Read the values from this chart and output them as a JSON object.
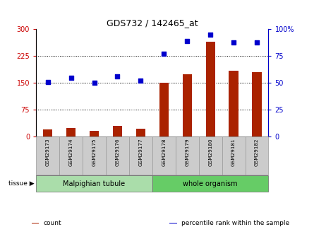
{
  "title": "GDS732 / 142465_at",
  "categories": [
    "GSM29173",
    "GSM29174",
    "GSM29175",
    "GSM29176",
    "GSM29177",
    "GSM29178",
    "GSM29179",
    "GSM29180",
    "GSM29181",
    "GSM29182"
  ],
  "counts": [
    20,
    25,
    16,
    30,
    22,
    150,
    175,
    265,
    185,
    180
  ],
  "percentiles": [
    51,
    55,
    50,
    56,
    52,
    77,
    89,
    95,
    88,
    88
  ],
  "bar_color": "#AA2200",
  "dot_color": "#0000CC",
  "ylim_left": [
    0,
    300
  ],
  "ylim_right": [
    0,
    100
  ],
  "yticks_left": [
    0,
    75,
    150,
    225,
    300
  ],
  "ytick_labels_left": [
    "0",
    "75",
    "150",
    "225",
    "300"
  ],
  "yticks_right": [
    0,
    25,
    50,
    75,
    100
  ],
  "ytick_labels_right": [
    "0",
    "25",
    "50",
    "75",
    "100%"
  ],
  "hlines": [
    75,
    150,
    225
  ],
  "tissue_groups": [
    {
      "label": "Malpighian tubule",
      "indices": [
        0,
        1,
        2,
        3,
        4
      ],
      "color": "#AADDAA"
    },
    {
      "label": "whole organism",
      "indices": [
        5,
        6,
        7,
        8,
        9
      ],
      "color": "#66CC66"
    }
  ],
  "tissue_label": "tissue",
  "legend_items": [
    {
      "label": "count",
      "color": "#AA2200"
    },
    {
      "label": "percentile rank within the sample",
      "color": "#0000CC"
    }
  ],
  "left_tick_color": "#CC0000",
  "right_tick_color": "#0000CC",
  "title_color": "#000000",
  "grid_color": "#000000",
  "tick_label_bg": "#CCCCCC",
  "tick_label_border": "#999999",
  "bar_width": 0.4
}
